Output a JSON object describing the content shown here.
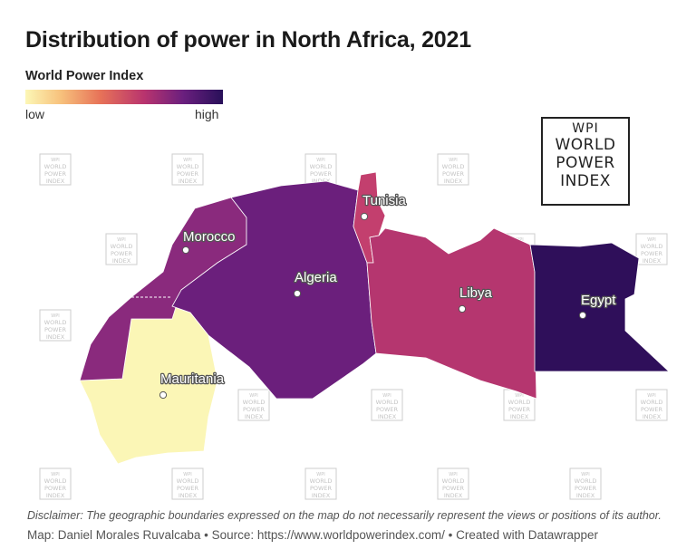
{
  "title": "Distribution of power in North Africa, 2021",
  "legend": {
    "title": "World Power Index",
    "low_label": "low",
    "high_label": "high",
    "gradient_colors": [
      "#fcf7b6",
      "#f7c17c",
      "#e77258",
      "#b9346e",
      "#6a1f7e",
      "#281059"
    ]
  },
  "logo": {
    "line1": "WPI",
    "line2": "WORLD",
    "line3": "POWER",
    "line4": "INDEX"
  },
  "watermark": {
    "line1": "WPI",
    "line2": "WORLD",
    "line3": "POWER",
    "line4": "INDEX"
  },
  "countries": [
    {
      "name": "Morocco",
      "color": "#8a2a7d"
    },
    {
      "name": "Algeria",
      "color": "#6b1f7c"
    },
    {
      "name": "Tunisia",
      "color": "#c33f6e"
    },
    {
      "name": "Libya",
      "color": "#b5366f"
    },
    {
      "name": "Egypt",
      "color": "#2f0f5a"
    },
    {
      "name": "Mauritania",
      "color": "#fbf6b6"
    }
  ],
  "disclaimer": "Disclaimer: The geographic boundaries expressed on the map do not necessarily represent the views or positions of its author.",
  "credits": "Map: Daniel Morales Ruvalcaba • Source: https://www.worldpowerindex.com/ • Created with Datawrapper"
}
